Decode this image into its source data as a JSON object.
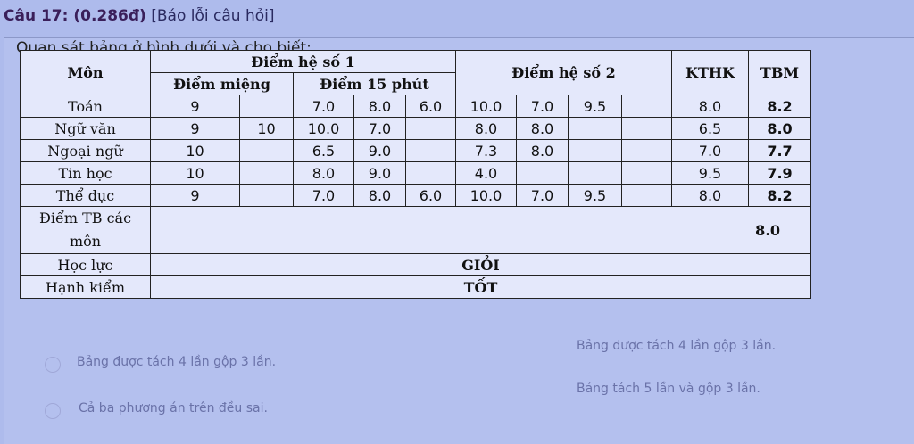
{
  "question": {
    "number_label": "Câu 17: (0.286đ)",
    "report_link": "[Báo lỗi câu hỏi]",
    "prompt": "Quan sát bảng ở hình dưới và cho biết:"
  },
  "table": {
    "headers": {
      "subject": "Môn",
      "coef1": "Điểm hệ số 1",
      "oral": "Điểm miệng",
      "fifteen": "Điểm 15 phút",
      "coef2": "Điểm hệ số 2",
      "final_exam": "KTHK",
      "average": "TBM"
    },
    "rows": [
      {
        "subject": "Toán",
        "cells": [
          "9",
          "",
          "7.0",
          "8.0",
          "6.0",
          "10.0",
          "7.0",
          "9.5",
          "",
          "8.0",
          "8.2"
        ]
      },
      {
        "subject": "Ngữ văn",
        "cells": [
          "9",
          "10",
          "10.0",
          "7.0",
          "",
          "8.0",
          "8.0",
          "",
          "",
          "6.5",
          "8.0"
        ]
      },
      {
        "subject": "Ngoại ngữ",
        "cells": [
          "10",
          "",
          "6.5",
          "9.0",
          "",
          "7.3",
          "8.0",
          "",
          "",
          "7.0",
          "7.7"
        ]
      },
      {
        "subject": "Tin học",
        "cells": [
          "10",
          "",
          "8.0",
          "9.0",
          "",
          "4.0",
          "",
          "",
          "",
          "9.5",
          "7.9"
        ]
      },
      {
        "subject": "Thể dục",
        "cells": [
          "9",
          "",
          "7.0",
          "8.0",
          "6.0",
          "10.0",
          "7.0",
          "9.5",
          "",
          "8.0",
          "8.2"
        ]
      }
    ],
    "summary": [
      {
        "label": "Điểm TB các môn",
        "value": "8.0"
      },
      {
        "label": "Học lực",
        "value": "GIỎI"
      },
      {
        "label": "Hạnh kiểm",
        "value": "TỐT"
      }
    ]
  },
  "options": [
    "Bảng được tách 4 lần gộp 3 lần.",
    "Bảng được tách 4 lần gộp 3 lần.",
    "Cả ba phương án trên đều sai.",
    "Bảng tách 5 lần và gộp 3 lần."
  ]
}
